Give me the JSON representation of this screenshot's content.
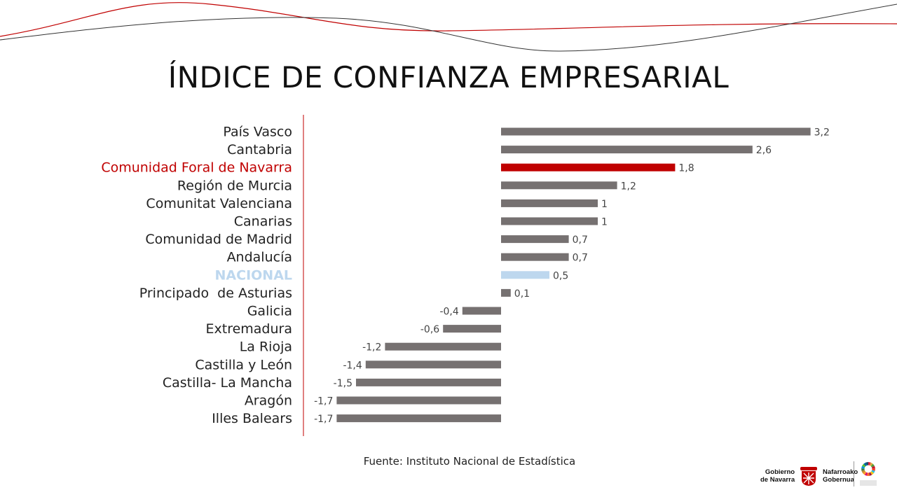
{
  "page": {
    "title": "ÍNDICE DE CONFIANZA EMPRESARIAL",
    "source": "Fuente: Instituto Nacional de Estadística"
  },
  "colors": {
    "bar_default": "#767171",
    "bar_highlight": "#c00000",
    "bar_national": "#bdd7ee",
    "label_highlight": "#c00000",
    "label_national": "#bdd7ee",
    "axis_line": "#c00000",
    "wave_red": "#c00000",
    "wave_dark": "#333333"
  },
  "chart_data": {
    "type": "bar",
    "orientation": "horizontal",
    "title": "ÍNDICE DE CONFIANZA EMPRESARIAL",
    "categories": [
      "País Vasco",
      "Cantabria",
      "Comunidad Foral de Navarra",
      "Región de Murcia",
      "Comunitat Valenciana",
      "Canarias",
      "Comunidad de Madrid",
      "Andalucía",
      "NACIONAL",
      "Principado  de Asturias",
      "Galicia",
      "Extremadura",
      "La Rioja",
      "Castilla y León",
      "Castilla- La Mancha",
      "Aragón",
      "Illes Balears"
    ],
    "values": [
      3.2,
      2.6,
      1.8,
      1.2,
      1,
      1,
      0.7,
      0.7,
      0.5,
      0.1,
      -0.4,
      -0.6,
      -1.2,
      -1.4,
      -1.5,
      -1.7,
      -1.7
    ],
    "value_labels": [
      "3,2",
      "2,6",
      "1,8",
      "1,2",
      "1",
      "1",
      "0,7",
      "0,7",
      "0,5",
      "0,1",
      "-0,4",
      "-0,6",
      "-1,2",
      "-1,4",
      "-1,5",
      "-1,7",
      "-1,7"
    ],
    "highlight": {
      "Comunidad Foral de Navarra": "region",
      "NACIONAL": "national"
    },
    "xlim": [
      -1.7,
      3.2
    ],
    "grid": false,
    "legend": "none"
  },
  "footer": {
    "logo_left": [
      "Gobierno",
      "de Navarra"
    ],
    "logo_right": [
      "Nafarroako",
      "Gobernua"
    ],
    "agenda_logo": "agenda-2030-logo"
  }
}
